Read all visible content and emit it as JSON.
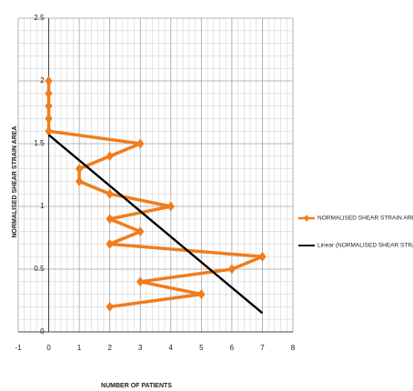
{
  "chart_data": {
    "type": "line",
    "x_label": "NUMBER OF PATIENTS",
    "y_label": "NORMALISED SHEAR STRAIN AREA",
    "xlim": [
      -1,
      8
    ],
    "xticks": [
      -1,
      0,
      1,
      2,
      3,
      4,
      5,
      6,
      7,
      8
    ],
    "ylim": [
      0,
      2.5
    ],
    "yticks": [
      0,
      0.5,
      1,
      1.5,
      2,
      2.5
    ],
    "grid": true,
    "legend": "right",
    "series": [
      {
        "name": "NORMALISED SHEAR STRAIN AREA",
        "color": "#f07c1c",
        "x": [
          0,
          0,
          0,
          0,
          0,
          3,
          2,
          1,
          1,
          2,
          4,
          2,
          3,
          2,
          7,
          6,
          3,
          5,
          2
        ],
        "values": [
          2.0,
          1.9,
          1.8,
          1.7,
          1.6,
          1.5,
          1.4,
          1.3,
          1.2,
          1.1,
          1.0,
          0.9,
          0.8,
          0.7,
          0.6,
          0.5,
          0.4,
          0.3,
          0.2
        ]
      },
      {
        "name": "Linear (NORMALISED SHEAR STRAIN",
        "color": "#000000",
        "x": [
          0,
          7
        ],
        "values": [
          1.57,
          0.15
        ]
      }
    ]
  }
}
